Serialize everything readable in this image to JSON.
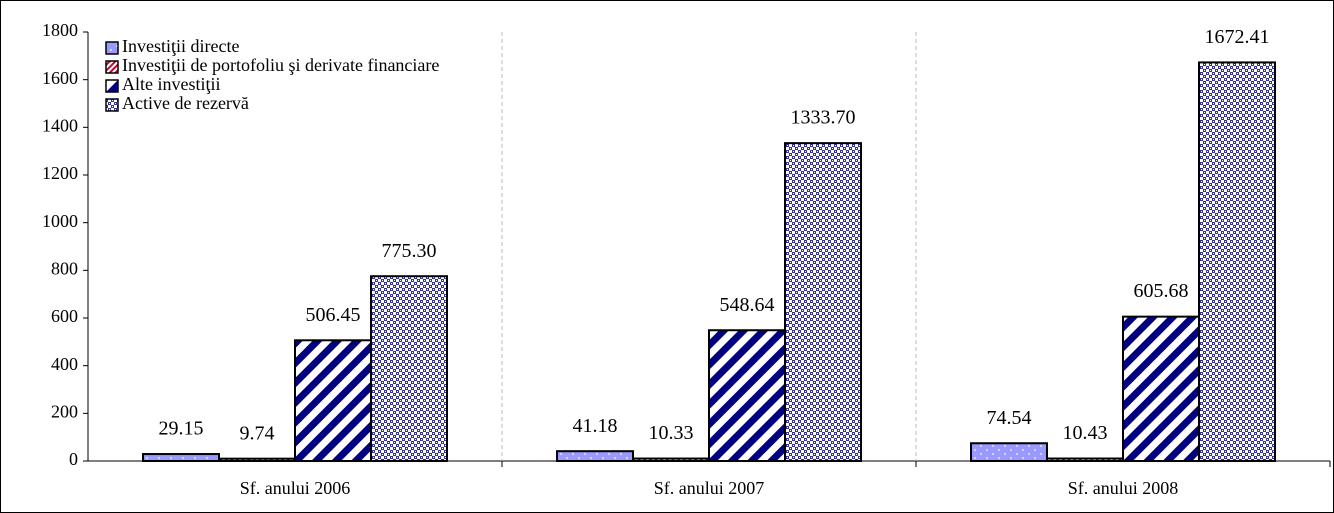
{
  "chart_data": {
    "type": "bar",
    "categories": [
      "Sf. anului 2006",
      "Sf. anului 2007",
      "Sf. anului 2008"
    ],
    "series": [
      {
        "name": "Investiţii directe",
        "color": "#9999ff",
        "pattern": "dots",
        "values": [
          29.15,
          41.18,
          74.54
        ],
        "value_labels": [
          "29.15",
          "41.18",
          "74.54"
        ]
      },
      {
        "name": "Investiţii de portofoliu şi derivate financiare",
        "color": "#cc0033",
        "pattern": "hatch",
        "values": [
          9.74,
          10.33,
          10.43
        ],
        "value_labels": [
          "9.74",
          "10.33",
          "10.43"
        ]
      },
      {
        "name": "Alte investiţii",
        "color": "#000080",
        "pattern": "stripes",
        "values": [
          506.45,
          548.64,
          605.68
        ],
        "value_labels": [
          "506.45",
          "548.64",
          "605.68"
        ]
      },
      {
        "name": "Active de rezervă",
        "color": "#333399",
        "pattern": "checker",
        "values": [
          775.3,
          1333.7,
          1672.41
        ],
        "value_labels": [
          "775.30",
          "1333.70",
          "1672.41"
        ]
      }
    ],
    "ylim": [
      0,
      1800
    ],
    "yticks": [
      0,
      200,
      400,
      600,
      800,
      1000,
      1200,
      1400,
      1600,
      1800
    ],
    "legend": "top-left"
  }
}
